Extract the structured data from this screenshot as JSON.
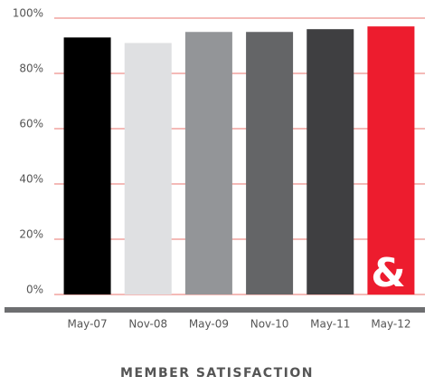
{
  "chart_data": {
    "type": "bar",
    "title": "MEMBER SATISFACTION",
    "categories": [
      "May-07",
      "Nov-08",
      "May-09",
      "Nov-10",
      "May-11",
      "May-12"
    ],
    "values": [
      93,
      91,
      95,
      95,
      96,
      97
    ],
    "colors": [
      "#000000",
      "#dfe0e2",
      "#939598",
      "#646567",
      "#3f3f41",
      "#ed1c2e"
    ],
    "ylim": [
      0,
      100
    ],
    "yticks": [
      {
        "value": 0,
        "label": "0%"
      },
      {
        "value": 20,
        "label": "20%"
      },
      {
        "value": 40,
        "label": "40%"
      },
      {
        "value": 60,
        "label": "60%"
      },
      {
        "value": 80,
        "label": "80%"
      },
      {
        "value": 100,
        "label": "100%"
      }
    ],
    "grid": true,
    "annotations": [
      "&"
    ]
  }
}
